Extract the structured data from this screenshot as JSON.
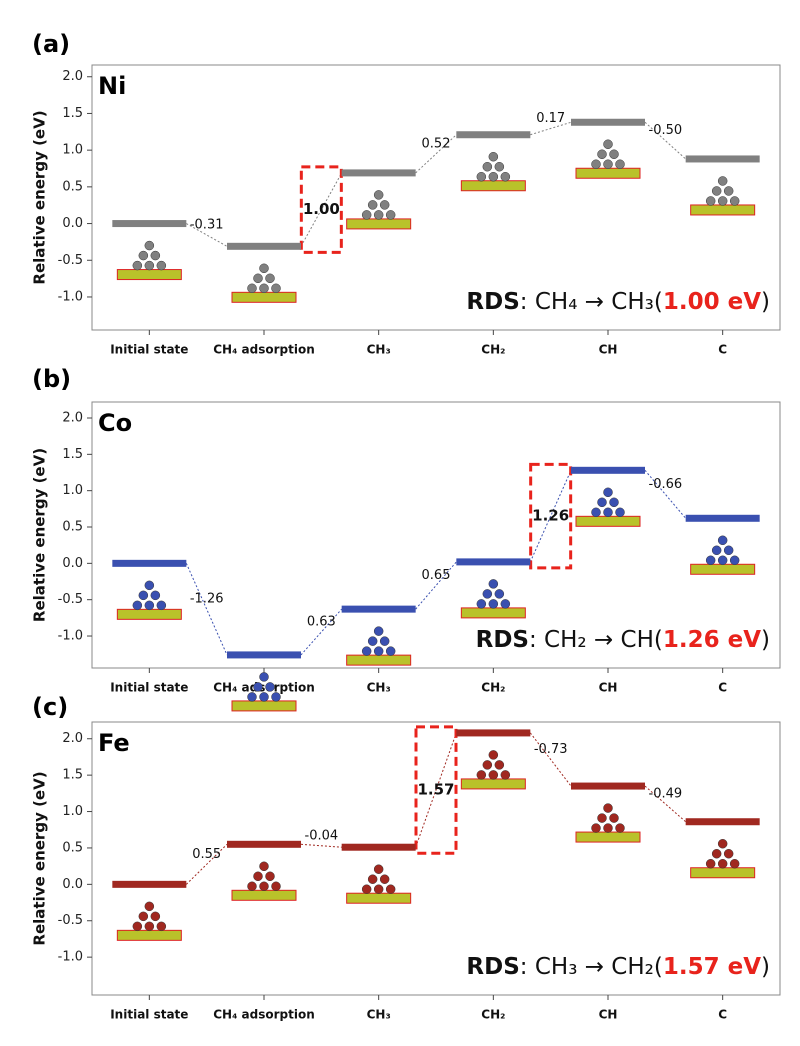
{
  "chart_data": [
    {
      "type": "step",
      "panel": "(a)",
      "title": "Ni",
      "ylabel": "Relative energy (eV)",
      "categories": [
        "Initial state",
        "CH₄ adsorption",
        "CH₃",
        "CH₂",
        "CH",
        "C"
      ],
      "values": [
        0.0,
        -0.31,
        0.69,
        1.21,
        1.38,
        0.88
      ],
      "color": "#808080",
      "steps": {
        "values": [
          -0.31,
          1.0,
          0.52,
          0.17,
          -0.5
        ],
        "value_labels": [
          "-0.31",
          "1.00",
          "0.52",
          "0.17",
          "-0.50"
        ]
      },
      "highlight_step": 1,
      "rds": [
        "RDS",
        ": CH₄ → CH₃(",
        "1.00 eV",
        ")"
      ],
      "ylim": [
        -1.45,
        2.16
      ],
      "yticks": [
        {
          "value": -1,
          "label": "-1.0"
        },
        {
          "value": -0.5,
          "label": "-0.5"
        },
        {
          "value": 0,
          "label": "0.0"
        },
        {
          "value": 0.5,
          "label": "0.5"
        },
        {
          "value": 1,
          "label": "1.0"
        },
        {
          "value": 1.5,
          "label": "1.5"
        },
        {
          "value": 2,
          "label": "2.0"
        }
      ]
    },
    {
      "type": "step",
      "panel": "(b)",
      "title": "Co",
      "ylabel": "Relative energy (eV)",
      "categories": [
        "Initial state",
        "CH₄ adsorption",
        "CH₃",
        "CH₂",
        "CH",
        "C"
      ],
      "values": [
        0.0,
        -1.26,
        -0.63,
        0.02,
        1.28,
        0.62
      ],
      "color": "#3a50b0",
      "steps": {
        "values": [
          -1.26,
          0.63,
          0.65,
          1.26,
          -0.66
        ],
        "value_labels": [
          "-1.26",
          "0.63",
          "0.65",
          "1.26",
          "-0.66"
        ]
      },
      "highlight_step": 3,
      "rds": [
        "RDS",
        ": CH₂ → CH(",
        "1.26 eV",
        ")"
      ],
      "ylim": [
        -1.44,
        2.22
      ],
      "yticks": [
        {
          "value": -1,
          "label": "-1.0"
        },
        {
          "value": -0.5,
          "label": "-0.5"
        },
        {
          "value": 0,
          "label": "0.0"
        },
        {
          "value": 0.5,
          "label": "0.5"
        },
        {
          "value": 1,
          "label": "1.0"
        },
        {
          "value": 1.5,
          "label": "1.5"
        },
        {
          "value": 2,
          "label": "2.0"
        }
      ]
    },
    {
      "type": "step",
      "panel": "(c)",
      "title": "Fe",
      "ylabel": "Relative energy (eV)",
      "categories": [
        "Initial state",
        "CH₄ adsorption",
        "CH₃",
        "CH₂",
        "CH",
        "C"
      ],
      "values": [
        0.0,
        0.55,
        0.51,
        2.08,
        1.35,
        0.86
      ],
      "color": "#a02820",
      "steps": {
        "values": [
          0.55,
          -0.04,
          1.57,
          -0.73,
          -0.49
        ],
        "value_labels": [
          "0.55",
          "-0.04",
          "1.57",
          "-0.73",
          "-0.49"
        ]
      },
      "highlight_step": 2,
      "rds": [
        "RDS",
        ": CH₃ → CH₂(",
        "1.57 eV",
        ")"
      ],
      "ylim": [
        -1.52,
        2.23
      ],
      "yticks": [
        {
          "value": -1,
          "label": "-1.0"
        },
        {
          "value": -0.5,
          "label": "-0.5"
        },
        {
          "value": 0,
          "label": "0.0"
        },
        {
          "value": 0.5,
          "label": "0.5"
        },
        {
          "value": 1,
          "label": "1.0"
        },
        {
          "value": 1.5,
          "label": "1.5"
        },
        {
          "value": 2,
          "label": "2.0"
        }
      ]
    }
  ]
}
